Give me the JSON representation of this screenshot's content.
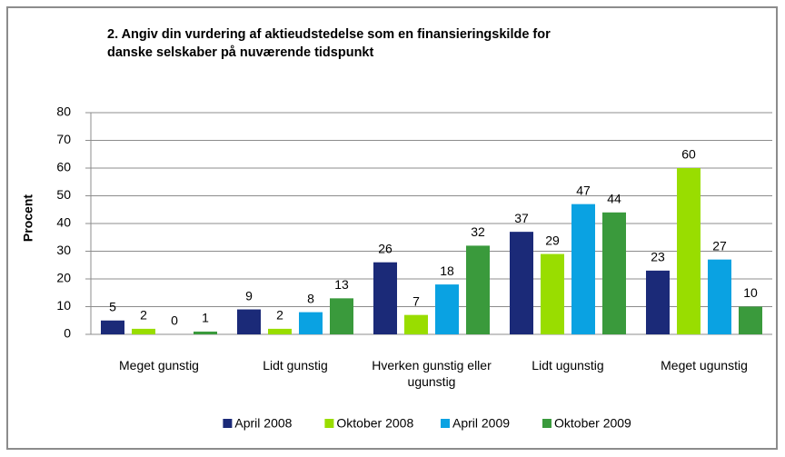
{
  "chart_data": {
    "type": "bar",
    "title": [
      "2. Angiv din vurdering af aktieudstedelse som en finansieringskilde for",
      "danske selskaber på nuværende tidspunkt"
    ],
    "ylabel": "Procent",
    "categories": [
      "Meget gunstig",
      "Lidt gunstig",
      "Hverken gunstig eller ugunstig",
      "Lidt ugunstig",
      "Meget ugunstig"
    ],
    "series": [
      {
        "name": "April 2008",
        "color": "#1b2a78",
        "values": [
          5,
          9,
          26,
          37,
          23
        ]
      },
      {
        "name": "Oktober 2008",
        "color": "#99dd00",
        "values": [
          2,
          2,
          7,
          29,
          60
        ]
      },
      {
        "name": "April 2009",
        "color": "#0aa2e2",
        "values": [
          0,
          8,
          18,
          47,
          27
        ]
      },
      {
        "name": "Oktober 2009",
        "color": "#3a9a3c",
        "values": [
          1,
          13,
          32,
          44,
          10
        ]
      }
    ],
    "ylim": [
      0,
      80
    ],
    "yticks": [
      0,
      10,
      20,
      30,
      40,
      50,
      60,
      70,
      80
    ],
    "grid": true,
    "legend": "bottom"
  }
}
